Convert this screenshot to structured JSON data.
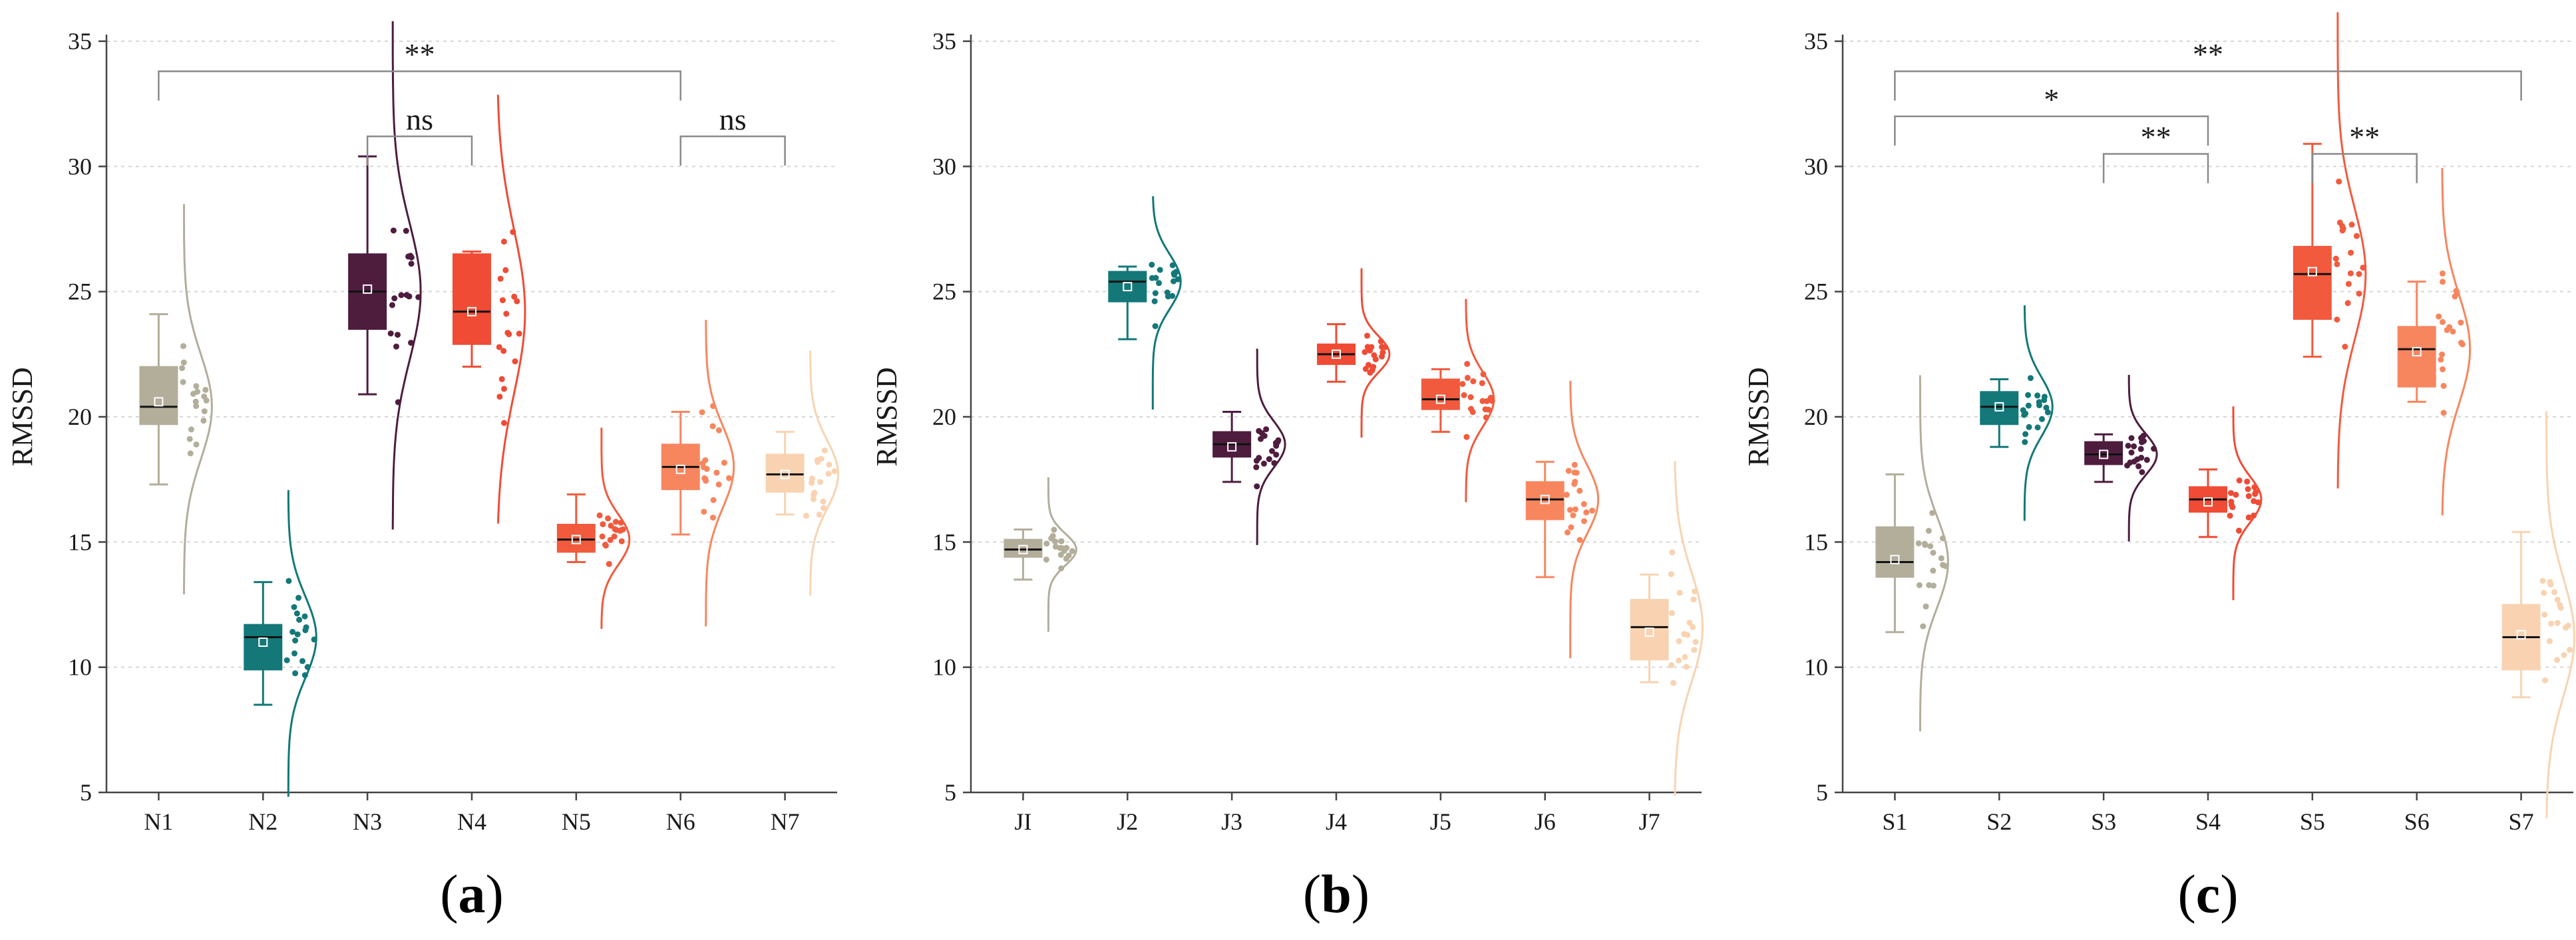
{
  "chart_data": [
    {
      "type": "box",
      "caption_letter": "a",
      "ylabel": "RMSSD",
      "ylim": [
        5,
        35
      ],
      "yticks": [
        5,
        10,
        15,
        20,
        25,
        30,
        35
      ],
      "grid": true,
      "categories": [
        "N1",
        "N2",
        "N3",
        "N4",
        "N5",
        "N6",
        "N7"
      ],
      "boxes": [
        {
          "name": "N1",
          "color": "#b2ae9a",
          "whisker_low": 17.3,
          "q1": 19.7,
          "median": 20.4,
          "mean": 20.6,
          "q3": 22.0,
          "whisker_high": 24.1
        },
        {
          "name": "N2",
          "color": "#147878",
          "whisker_low": 8.5,
          "q1": 9.9,
          "median": 11.2,
          "mean": 11.0,
          "q3": 11.7,
          "whisker_high": 13.4
        },
        {
          "name": "N3",
          "color": "#4e1d3e",
          "whisker_low": 20.9,
          "q1": 23.5,
          "median": 25.0,
          "mean": 25.1,
          "q3": 26.5,
          "whisker_high": 30.4
        },
        {
          "name": "N4",
          "color": "#ef4b35",
          "whisker_low": 22.0,
          "q1": 22.9,
          "median": 24.2,
          "mean": 24.2,
          "q3": 26.5,
          "whisker_high": 26.6
        },
        {
          "name": "N5",
          "color": "#f15a3d",
          "whisker_low": 14.2,
          "q1": 14.6,
          "median": 15.1,
          "mean": 15.1,
          "q3": 15.7,
          "whisker_high": 16.9
        },
        {
          "name": "N6",
          "color": "#f7865f",
          "whisker_low": 15.3,
          "q1": 17.1,
          "median": 18.0,
          "mean": 17.9,
          "q3": 18.9,
          "whisker_high": 20.2
        },
        {
          "name": "N7",
          "color": "#f9d3b1",
          "whisker_low": 16.1,
          "q1": 17.0,
          "median": 17.7,
          "mean": 17.7,
          "q3": 18.5,
          "whisker_high": 19.4
        }
      ],
      "significance": [
        {
          "from": "N1",
          "to": "N6",
          "y": 33.8,
          "label": "**"
        },
        {
          "from": "N3",
          "to": "N4",
          "y": 31.2,
          "label": "ns"
        },
        {
          "from": "N6",
          "to": "N7",
          "y": 31.2,
          "label": "ns"
        }
      ]
    },
    {
      "type": "box",
      "caption_letter": "b",
      "ylabel": "RMSSD",
      "ylim": [
        5,
        35
      ],
      "yticks": [
        5,
        10,
        15,
        20,
        25,
        30,
        35
      ],
      "grid": true,
      "categories": [
        "JI",
        "J2",
        "J3",
        "J4",
        "J5",
        "J6",
        "J7"
      ],
      "boxes": [
        {
          "name": "JI",
          "color": "#b2ae9a",
          "whisker_low": 13.5,
          "q1": 14.4,
          "median": 14.7,
          "mean": 14.7,
          "q3": 15.1,
          "whisker_high": 15.5
        },
        {
          "name": "J2",
          "color": "#147878",
          "whisker_low": 23.1,
          "q1": 24.6,
          "median": 25.4,
          "mean": 25.2,
          "q3": 25.8,
          "whisker_high": 26.0
        },
        {
          "name": "J3",
          "color": "#4e1d3e",
          "whisker_low": 17.4,
          "q1": 18.4,
          "median": 18.9,
          "mean": 18.8,
          "q3": 19.4,
          "whisker_high": 20.2
        },
        {
          "name": "J4",
          "color": "#ef4b35",
          "whisker_low": 21.4,
          "q1": 22.1,
          "median": 22.5,
          "mean": 22.5,
          "q3": 22.9,
          "whisker_high": 23.7
        },
        {
          "name": "J5",
          "color": "#f15a3d",
          "whisker_low": 19.4,
          "q1": 20.3,
          "median": 20.7,
          "mean": 20.7,
          "q3": 21.5,
          "whisker_high": 21.9
        },
        {
          "name": "J6",
          "color": "#f7865f",
          "whisker_low": 13.6,
          "q1": 15.9,
          "median": 16.7,
          "mean": 16.7,
          "q3": 17.4,
          "whisker_high": 18.2
        },
        {
          "name": "J7",
          "color": "#f9d3b1",
          "whisker_low": 9.4,
          "q1": 10.3,
          "median": 11.6,
          "mean": 11.4,
          "q3": 12.7,
          "whisker_high": 13.7
        }
      ],
      "significance": []
    },
    {
      "type": "box",
      "caption_letter": "c",
      "ylabel": "RMSSD",
      "ylim": [
        5,
        35
      ],
      "yticks": [
        5,
        10,
        15,
        20,
        25,
        30,
        35
      ],
      "grid": true,
      "categories": [
        "S1",
        "S2",
        "S3",
        "S4",
        "S5",
        "S6",
        "S7"
      ],
      "boxes": [
        {
          "name": "S1",
          "color": "#b2ae9a",
          "whisker_low": 11.4,
          "q1": 13.6,
          "median": 14.2,
          "mean": 14.3,
          "q3": 15.6,
          "whisker_high": 17.7
        },
        {
          "name": "S2",
          "color": "#147878",
          "whisker_low": 18.8,
          "q1": 19.7,
          "median": 20.4,
          "mean": 20.4,
          "q3": 21.0,
          "whisker_high": 21.5
        },
        {
          "name": "S3",
          "color": "#4e1d3e",
          "whisker_low": 17.4,
          "q1": 18.1,
          "median": 18.5,
          "mean": 18.5,
          "q3": 19.0,
          "whisker_high": 19.3
        },
        {
          "name": "S4",
          "color": "#ef4b35",
          "whisker_low": 15.2,
          "q1": 16.2,
          "median": 16.7,
          "mean": 16.6,
          "q3": 17.2,
          "whisker_high": 17.9
        },
        {
          "name": "S5",
          "color": "#f15a3d",
          "whisker_low": 22.4,
          "q1": 23.9,
          "median": 25.7,
          "mean": 25.8,
          "q3": 26.8,
          "whisker_high": 30.9
        },
        {
          "name": "S6",
          "color": "#f7865f",
          "whisker_low": 20.6,
          "q1": 21.2,
          "median": 22.7,
          "mean": 22.6,
          "q3": 23.6,
          "whisker_high": 25.4
        },
        {
          "name": "S7",
          "color": "#f9d3b1",
          "whisker_low": 8.8,
          "q1": 9.9,
          "median": 11.2,
          "mean": 11.3,
          "q3": 12.5,
          "whisker_high": 15.4
        }
      ],
      "significance": [
        {
          "from": "S1",
          "to": "S7",
          "y": 33.8,
          "label": "**"
        },
        {
          "from": "S1",
          "to": "S4",
          "y": 32.0,
          "label": "*"
        },
        {
          "from": "S3",
          "to": "S4",
          "y": 30.5,
          "label": "**"
        },
        {
          "from": "S5",
          "to": "S6",
          "y": 30.5,
          "label": "**"
        }
      ]
    }
  ]
}
